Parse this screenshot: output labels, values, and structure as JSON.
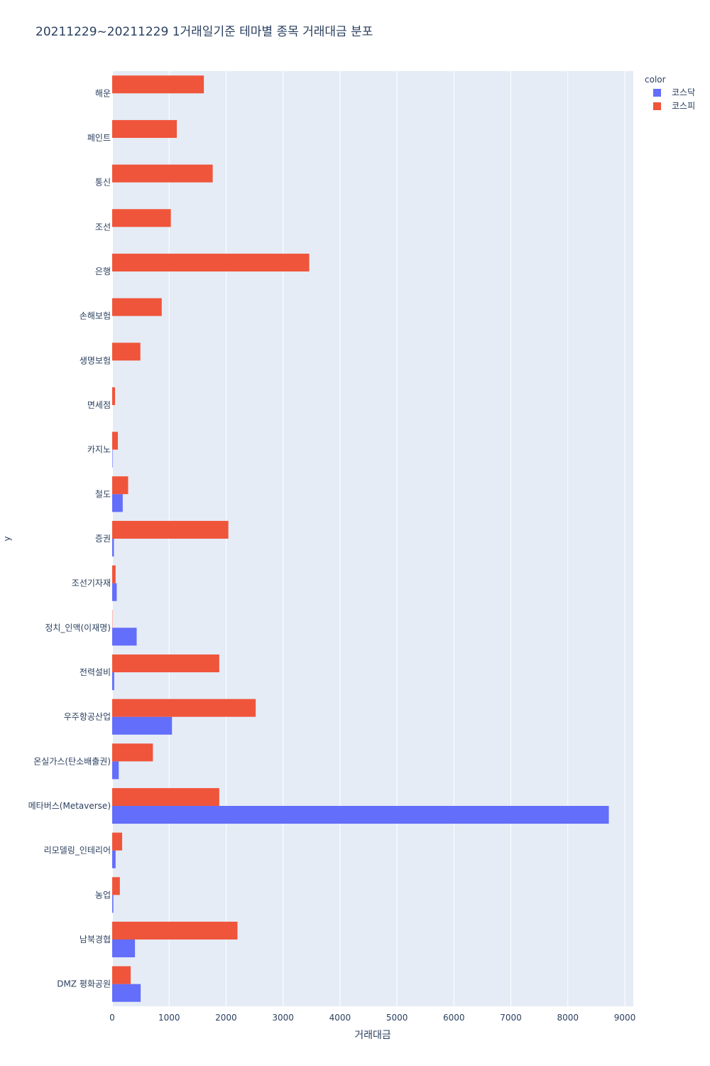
{
  "chart_data": {
    "type": "bar",
    "orientation": "horizontal",
    "title": "20211229~20211229 1거래일기준 테마별 종목 거래대금 분포",
    "xlabel": "거래대금",
    "ylabel": "y",
    "xlim": [
      0,
      9150
    ],
    "xticks": [
      0,
      1000,
      2000,
      3000,
      4000,
      5000,
      6000,
      7000,
      8000,
      9000
    ],
    "grid": true,
    "legend": {
      "title": "color",
      "placement": "top-right"
    },
    "categories": [
      "해운",
      "페인트",
      "통신",
      "조선",
      "은행",
      "손해보험",
      "생명보험",
      "면세점",
      "카지노",
      "철도",
      "증권",
      "조선기자재",
      "정치_인맥(이재명)",
      "전력설비",
      "우주항공산업",
      "온실가스(탄소배출권)",
      "메타버스(Metaverse)",
      "리모델링_인테리어",
      "농업",
      "남북경협",
      "DMZ 평화공원"
    ],
    "series": [
      {
        "name": "코스닥",
        "color": "#636efa",
        "values": [
          0,
          0,
          0,
          0,
          0,
          0,
          0,
          0,
          8,
          185,
          30,
          80,
          430,
          35,
          1050,
          115,
          8720,
          60,
          20,
          400,
          500
        ]
      },
      {
        "name": "코스피",
        "color": "#ef553b",
        "values": [
          1610,
          1135,
          1765,
          1030,
          3460,
          870,
          495,
          50,
          100,
          280,
          2040,
          60,
          5,
          1880,
          2520,
          715,
          1880,
          175,
          135,
          2200,
          325
        ]
      }
    ]
  }
}
